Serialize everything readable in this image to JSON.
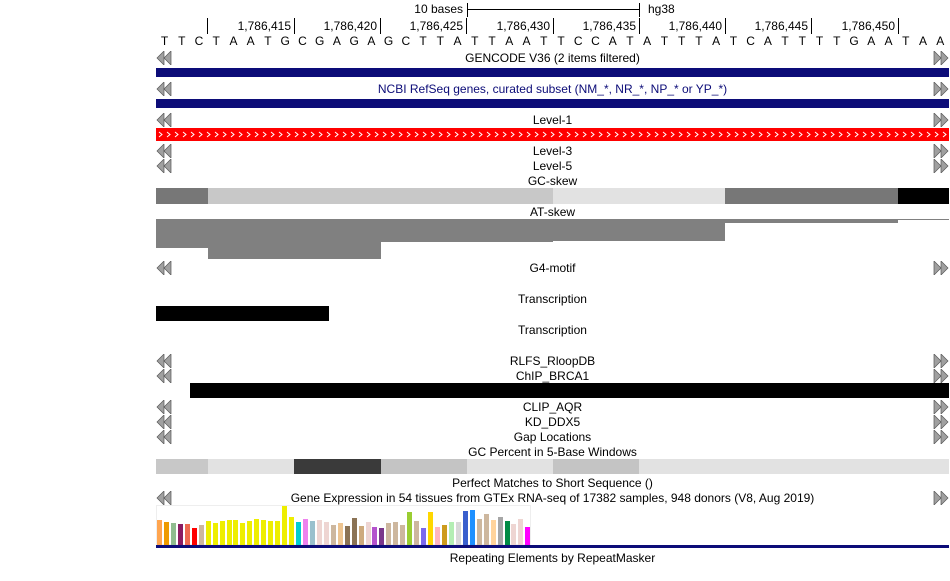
{
  "ruler": {
    "scale_label": "10 bases",
    "assembly": "hg38",
    "positions": [
      "1,786,415",
      "1,786,420",
      "1,786,425",
      "1,786,430",
      "1,786,435",
      "1,786,440",
      "1,786,445",
      "1,786,450"
    ],
    "sequence": "TTCTAATGCGAGAGCTTATTAATTCCATATTTATCATTTTGAATAA"
  },
  "tracks": {
    "gencode": "GENCODE V36 (2 items filtered)",
    "refseq": "NCBI RefSeq genes, curated subset (NM_*, NR_*, NP_* or YP_*)",
    "level1": "Level-1",
    "level3": "Level-3",
    "level5": "Level-5",
    "gcskew": "GC-skew",
    "atskew": "AT-skew",
    "g4": "G4-motif",
    "transcription1": "Transcription",
    "transcription2": "Transcription",
    "rlfs": "RLFS_RloopDB",
    "chip": "ChIP_BRCA1",
    "clip": "CLIP_AQR",
    "kd": "KD_DDX5",
    "gap": "Gap Locations",
    "gcpercent": "GC Percent in 5-Base Windows",
    "perfect": "Perfect Matches to Short Sequence ()",
    "gtex": "Gene Expression in 54 tissues from GTEx RNA-seq of 17382 samples, 948 donors (V8, Aug 2019)",
    "rmsk": "Repeating Elements by RepeatMasker"
  },
  "colors": {
    "gene": "#0c0c78",
    "level1": "#ff0000",
    "arrow": "#a0a0a0"
  },
  "gtex_expression": {
    "relative_levels": [
      75,
      69,
      66,
      63,
      63,
      51,
      60,
      72,
      66,
      72,
      75,
      75,
      66,
      72,
      78,
      75,
      72,
      72,
      117,
      84,
      69,
      78,
      72,
      75,
      69,
      60,
      66,
      57,
      81,
      57,
      69,
      54,
      51,
      66,
      69,
      60,
      99,
      72,
      51,
      99,
      54,
      60,
      69,
      69,
      102,
      105,
      78,
      93,
      75,
      84,
      72,
      63,
      78,
      54
    ],
    "colors": [
      "#ffa54f",
      "#ee9a00",
      "#8fbc8f",
      "#8b1c62",
      "#ee6a50",
      "#ff0000",
      "#cdb79e",
      "#eeee00",
      "#eeee00",
      "#eeee00",
      "#eeee00",
      "#eeee00",
      "#eeee00",
      "#eeee00",
      "#eeee00",
      "#eeee00",
      "#eeee00",
      "#eeee00",
      "#eeee00",
      "#eeee00",
      "#00ced1",
      "#ee82ee",
      "#9ac0cd",
      "#eed5d2",
      "#eed5d2",
      "#cdb79e",
      "#eec591",
      "#8b7355",
      "#8b7355",
      "#cdaa7d",
      "#eed5d2",
      "#b452cd",
      "#7a378b",
      "#cdb79e",
      "#cdb79e",
      "#cdb79e",
      "#9acd32",
      "#cdb79e",
      "#7b68ee",
      "#ffd700",
      "#ffb6c1",
      "#cd9b1d",
      "#b4eeb4",
      "#d9d9d9",
      "#3a5fcd",
      "#1e90ff",
      "#cdb79e",
      "#cdb79e",
      "#ffd39b",
      "#a6a6a6",
      "#008b45",
      "#eed5d2",
      "#eed5d2",
      "#ff00ff"
    ]
  }
}
